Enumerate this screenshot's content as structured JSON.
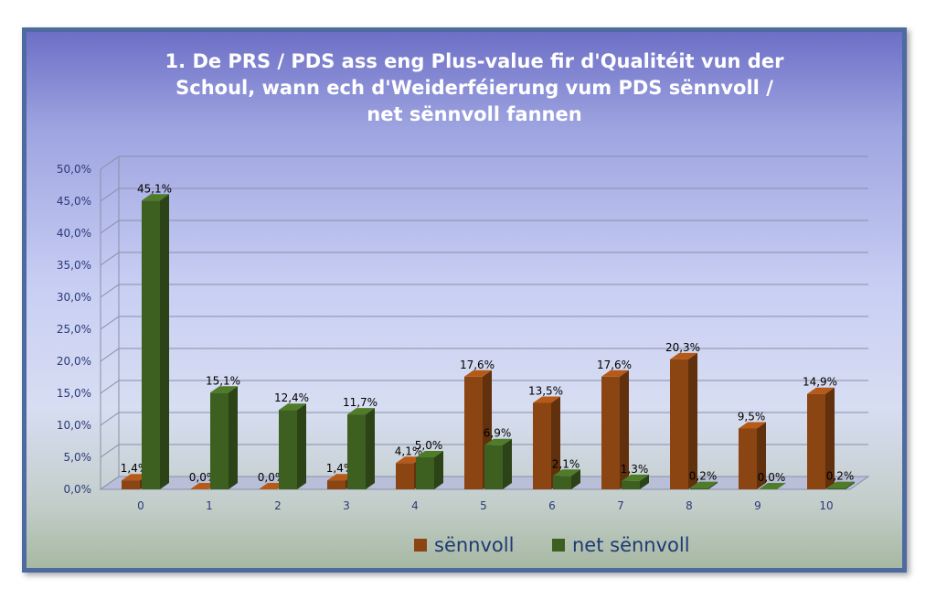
{
  "chart_data": {
    "type": "bar",
    "title": "1. De PRS / PDS ass eng Plus-value fir d'Qualitéit vun der Schoul, wann ech d'Weiderféierung vum PDS sënnvoll / net sënnvoll fannen",
    "categories": [
      "0",
      "1",
      "2",
      "3",
      "4",
      "5",
      "6",
      "7",
      "8",
      "9",
      "10"
    ],
    "series": [
      {
        "name": "sënnvoll",
        "color": "#8b4513",
        "values": [
          1.4,
          0.0,
          0.0,
          1.4,
          4.1,
          17.6,
          13.5,
          17.6,
          20.3,
          9.5,
          14.9
        ],
        "labels": [
          "1,4%",
          "0,0%",
          "0,0%",
          "1,4%",
          "4,1%",
          "17,6%",
          "13,5%",
          "17,6%",
          "20,3%",
          "9,5%",
          "14,9%"
        ]
      },
      {
        "name": "net sënnvoll",
        "color": "#3d5f1f",
        "values": [
          45.1,
          15.1,
          12.4,
          11.7,
          5.0,
          6.9,
          2.1,
          1.3,
          0.2,
          0.0,
          0.2
        ],
        "labels": [
          "45,1%",
          "15,1%",
          "12,4%",
          "11,7%",
          "5,0%",
          "6,9%",
          "2,1%",
          "1,3%",
          "0,2%",
          "0,0%",
          "0,2%"
        ]
      }
    ],
    "yticks": [
      "0,0%",
      "5,0%",
      "10,0%",
      "15,0%",
      "20,0%",
      "25,0%",
      "30,0%",
      "35,0%",
      "40,0%",
      "45,0%",
      "50,0%"
    ],
    "ylim": [
      0,
      50
    ],
    "grid": true,
    "legend": "bottom",
    "style": "3d-columns"
  }
}
